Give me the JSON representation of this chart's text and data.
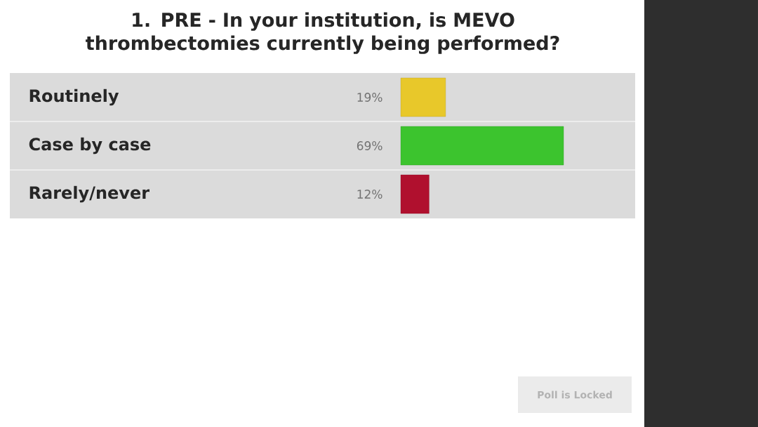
{
  "chart_data": {
    "type": "bar",
    "orientation": "horizontal",
    "title": "1. PRE - In your institution, is MEVO thrombectomies currently being performed?",
    "categories": [
      "Routinely",
      "Case by case",
      "Rarely/never"
    ],
    "values": [
      19,
      69,
      12
    ],
    "colors": [
      "#e8c82a",
      "#3cc42e",
      "#b0102e"
    ],
    "value_labels": [
      "19%",
      "69%",
      "12%"
    ],
    "annotations": [
      "Poll is Locked"
    ]
  }
}
